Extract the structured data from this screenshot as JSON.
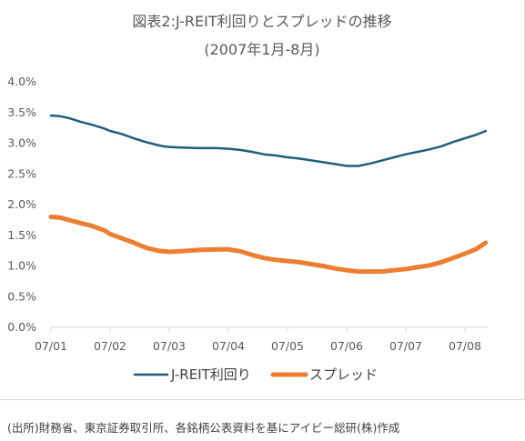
{
  "page": {
    "source_note": "(出所)財務省、東京証券取引所、各銘柄公表資料を基にアイビー総研(株)作成"
  },
  "chart_data": {
    "type": "line",
    "title": "図表2:J-REIT利回りとスプレッドの推移",
    "subtitle": "(2007年1月-8月)",
    "xlabel": "",
    "ylabel": "",
    "ylim": [
      0,
      4.0
    ],
    "y_ticks": [
      "0.0%",
      "0.5%",
      "1.0%",
      "1.5%",
      "2.0%",
      "2.5%",
      "3.0%",
      "3.5%",
      "4.0%"
    ],
    "x_ticks": [
      "07/01",
      "07/02",
      "07/03",
      "07/04",
      "07/05",
      "07/06",
      "07/07",
      "07/08"
    ],
    "xlim": [
      0,
      7.35
    ],
    "grid": false,
    "legend_position": "bottom",
    "series": [
      {
        "name": "J-REIT利回り",
        "color": "#1f5f7a",
        "x": [
          0,
          0.15,
          0.3,
          0.5,
          0.7,
          0.9,
          1.0,
          1.2,
          1.4,
          1.6,
          1.8,
          1.9,
          2.0,
          2.2,
          2.5,
          2.8,
          3.0,
          3.2,
          3.4,
          3.6,
          3.8,
          4.0,
          4.2,
          4.4,
          4.6,
          4.8,
          5.0,
          5.2,
          5.4,
          5.6,
          5.8,
          6.0,
          6.2,
          6.4,
          6.6,
          6.8,
          7.0,
          7.2,
          7.35
        ],
        "y": [
          3.45,
          3.44,
          3.41,
          3.35,
          3.3,
          3.24,
          3.2,
          3.15,
          3.08,
          3.02,
          2.97,
          2.95,
          2.94,
          2.93,
          2.92,
          2.92,
          2.91,
          2.89,
          2.86,
          2.82,
          2.8,
          2.77,
          2.75,
          2.72,
          2.69,
          2.66,
          2.63,
          2.63,
          2.67,
          2.72,
          2.77,
          2.82,
          2.86,
          2.9,
          2.95,
          3.02,
          3.08,
          3.14,
          3.2
        ]
      },
      {
        "name": "スプレッド",
        "color": "#ed7d31",
        "x": [
          0,
          0.15,
          0.3,
          0.5,
          0.7,
          0.9,
          1.0,
          1.2,
          1.4,
          1.6,
          1.8,
          2.0,
          2.2,
          2.5,
          2.8,
          3.0,
          3.2,
          3.4,
          3.6,
          3.8,
          4.0,
          4.2,
          4.4,
          4.6,
          4.8,
          5.0,
          5.2,
          5.4,
          5.6,
          5.8,
          6.0,
          6.2,
          6.4,
          6.6,
          6.8,
          7.0,
          7.2,
          7.35
        ],
        "y": [
          1.8,
          1.79,
          1.75,
          1.7,
          1.65,
          1.58,
          1.52,
          1.45,
          1.38,
          1.3,
          1.25,
          1.23,
          1.24,
          1.26,
          1.27,
          1.27,
          1.24,
          1.18,
          1.13,
          1.1,
          1.08,
          1.06,
          1.03,
          1.0,
          0.96,
          0.93,
          0.91,
          0.91,
          0.91,
          0.93,
          0.95,
          0.98,
          1.01,
          1.06,
          1.13,
          1.2,
          1.28,
          1.38
        ]
      }
    ]
  }
}
